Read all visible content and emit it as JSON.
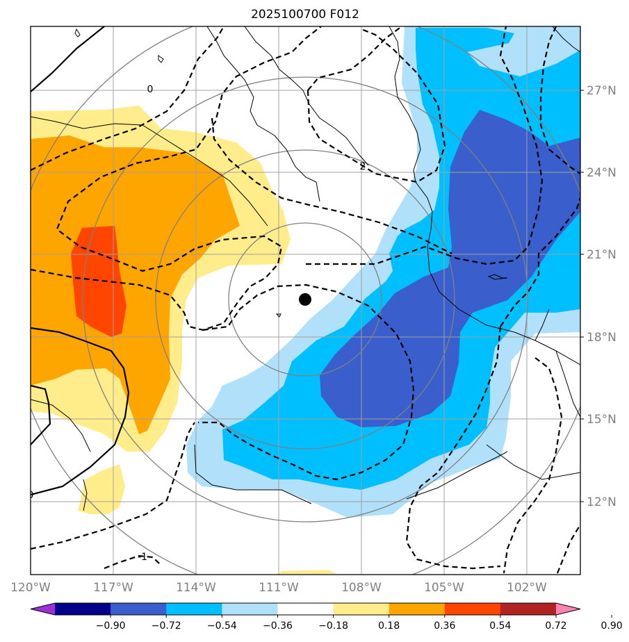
{
  "title": "2025100700 F012",
  "lon_ticks": [
    "120°W",
    "117°W",
    "114°W",
    "111°W",
    "108°W",
    "105°W",
    "102°W"
  ],
  "lat_ticks": [
    "27°N",
    "24°N",
    "21°N",
    "18°N",
    "15°N",
    "12°N"
  ],
  "colorbar": {
    "labels": [
      "−0.90",
      "−0.72",
      "−0.54",
      "−0.36",
      "−0.18",
      "0.18",
      "0.36",
      "0.54",
      "0.72",
      "0.90"
    ],
    "colors": [
      "#9b30d9",
      "#00008b",
      "#3a5fcd",
      "#00bfff",
      "#b0e0fa",
      "#ffffff",
      "#ffec8b",
      "#ffa500",
      "#ff4500",
      "#b22222",
      "#ff83b0"
    ]
  },
  "contour_labels": [
    "0",
    "2",
    "0",
    "-1"
  ],
  "storm_marker": "center-dot"
}
